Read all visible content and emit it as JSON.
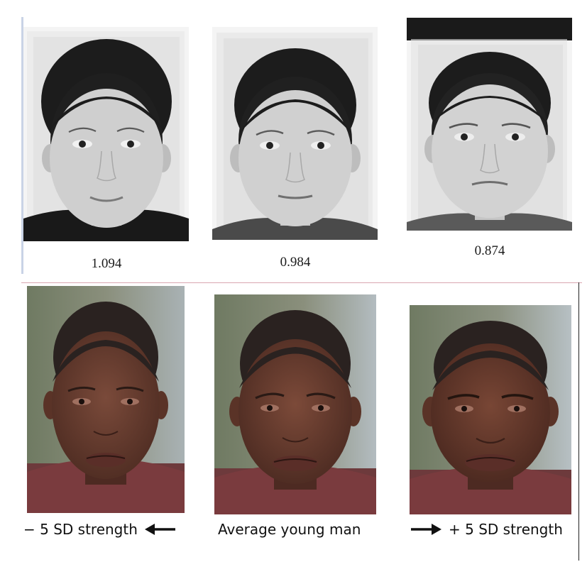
{
  "top_row": {
    "faces": [
      {
        "name": "child-composite-1",
        "score": "1.094"
      },
      {
        "name": "child-composite-2",
        "score": "0.984"
      },
      {
        "name": "child-composite-3",
        "score": "0.874"
      }
    ],
    "colors": {
      "background": "#f2f2f2",
      "hair": "#1c1c1c",
      "skin": "#cfcfcf"
    }
  },
  "bottom_row": {
    "captions": {
      "left": "− 5 SD strength",
      "middle": "Average young man",
      "right": "+ 5 SD strength"
    },
    "icons": {
      "left_arrow": "arrow-left-icon",
      "right_arrow": "arrow-right-icon"
    },
    "colors": {
      "background": "#7f8a74",
      "hair": "#2a2220",
      "skin": "#6b3f32",
      "shirt": "#7a3b3e"
    }
  }
}
